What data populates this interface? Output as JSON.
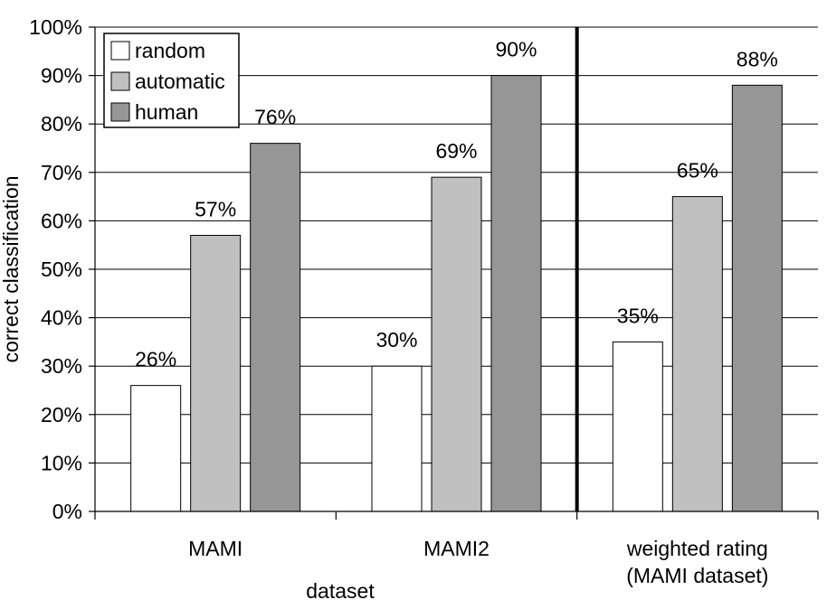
{
  "chart_data": {
    "type": "bar",
    "categories": [
      [
        "MAMI"
      ],
      [
        "MAMI2"
      ],
      [
        "weighted rating",
        "(MAMI dataset)"
      ]
    ],
    "series": [
      {
        "name": "random",
        "values": [
          26,
          30,
          35
        ],
        "color": "#ffffff"
      },
      {
        "name": "automatic",
        "values": [
          57,
          69,
          65
        ],
        "color": "#c0c0c0"
      },
      {
        "name": "human",
        "values": [
          76,
          90,
          88
        ],
        "color": "#969696"
      }
    ],
    "data_labels": [
      [
        "26%",
        "57%",
        "76%"
      ],
      [
        "30%",
        "69%",
        "90%"
      ],
      [
        "35%",
        "65%",
        "88%"
      ]
    ],
    "xlabel": "dataset",
    "ylabel": "correct classification",
    "ylim": [
      0,
      100
    ],
    "yticks": [
      "0%",
      "10%",
      "20%",
      "30%",
      "40%",
      "50%",
      "60%",
      "70%",
      "80%",
      "90%",
      "100%"
    ],
    "grid": true,
    "legend_position": "top-left",
    "separator_after_category": 1
  }
}
